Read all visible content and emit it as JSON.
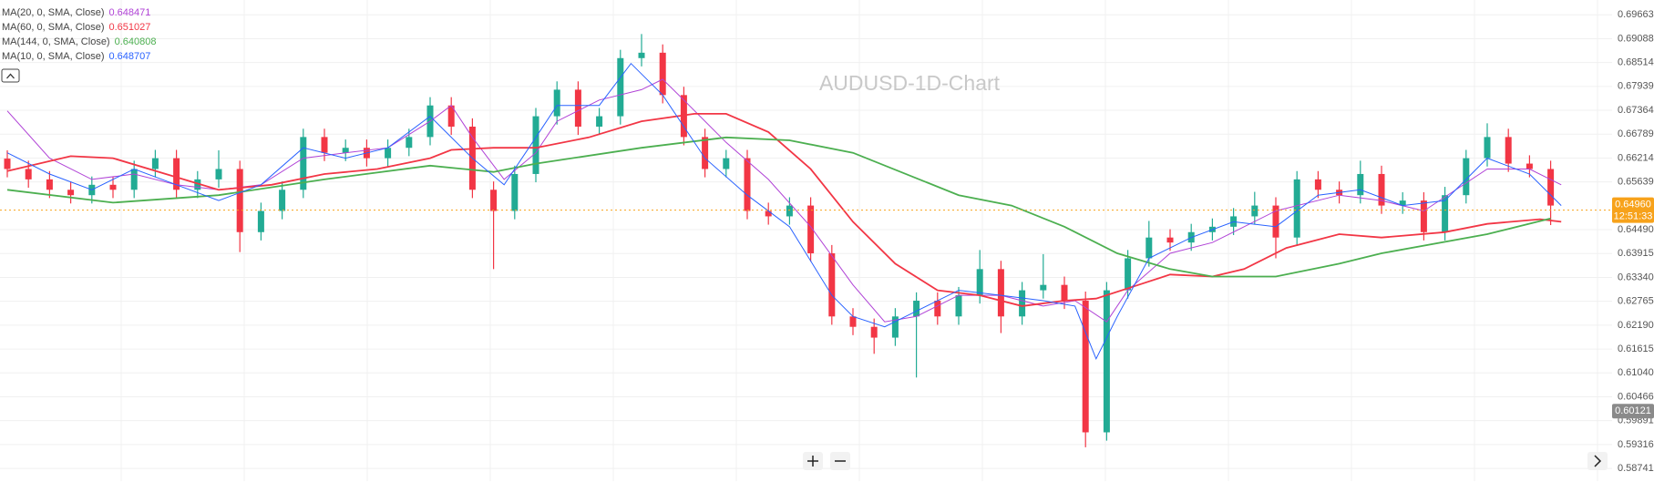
{
  "chart_data": {
    "type": "candlestick",
    "title": "AUDUSD-1D-Chart",
    "ylim": [
      0.58436,
      0.70019
    ],
    "yticks": [
      0.58741,
      0.59316,
      0.59891,
      0.60466,
      {
        "value": 0.6104,
        "label": "0.61040"
      },
      0.61615,
      {
        "value": 0.6219,
        "label": "0.62190"
      },
      0.62765,
      {
        "value": 0.6334,
        "label": "0.63340"
      },
      0.63915,
      {
        "value": 0.6449,
        "label": "0.64490"
      },
      0.65639,
      0.66214,
      0.66789,
      0.67364,
      0.67939,
      0.68514,
      0.69088,
      0.69663
    ],
    "grid": true,
    "up_color": "#22ab94",
    "down_color": "#f23645",
    "open": [
      0.662,
      0.6595,
      0.657,
      0.6545,
      0.6532,
      0.6557,
      0.6545,
      0.6595,
      0.6621,
      0.6545,
      0.657,
      0.6595,
      0.6443,
      0.6494,
      0.6545,
      0.6672,
      0.6634,
      0.6646,
      0.6621,
      0.6646,
      0.6672,
      0.6748,
      0.6697,
      0.6545,
      0.6494,
      0.6583,
      0.6722,
      0.6786,
      0.6697,
      0.6722,
      0.6862,
      0.6875,
      0.6773,
      0.6672,
      0.6595,
      0.6621,
      0.6494,
      0.6481,
      0.6507,
      0.6392,
      0.624,
      0.6215,
      0.6189,
      0.624,
      0.6278,
      0.624,
      0.6291,
      0.6354,
      0.624,
      0.6303,
      0.6316,
      0.6278,
      0.5961,
      0.6303,
      0.638,
      0.643,
      0.6418,
      0.6443,
      0.6456,
      0.6481,
      0.6507,
      0.643,
      0.657,
      0.6545,
      0.6532,
      0.6583,
      0.6507,
      0.6519,
      0.6443,
      0.6532,
      0.6621,
      0.6672,
      0.6608,
      0.6595
    ],
    "high": [
      0.664,
      0.6615,
      0.659,
      0.6565,
      0.6577,
      0.6577,
      0.6615,
      0.6641,
      0.6641,
      0.659,
      0.664,
      0.6615,
      0.6514,
      0.6565,
      0.6692,
      0.6692,
      0.6666,
      0.6666,
      0.6666,
      0.6692,
      0.6768,
      0.6768,
      0.6717,
      0.6565,
      0.6603,
      0.6742,
      0.6806,
      0.6806,
      0.6742,
      0.6882,
      0.692,
      0.6895,
      0.6793,
      0.6692,
      0.6641,
      0.6641,
      0.6514,
      0.6527,
      0.6527,
      0.6412,
      0.626,
      0.6235,
      0.626,
      0.6298,
      0.6298,
      0.6311,
      0.64,
      0.6374,
      0.6323,
      0.639,
      0.6336,
      0.63,
      0.6323,
      0.64,
      0.647,
      0.645,
      0.6463,
      0.6476,
      0.6501,
      0.654,
      0.6527,
      0.659,
      0.659,
      0.6565,
      0.6615,
      0.6603,
      0.6539,
      0.6539,
      0.6552,
      0.6641,
      0.6705,
      0.6692,
      0.6628,
      0.6615
    ],
    "low": [
      0.6575,
      0.655,
      0.6525,
      0.6512,
      0.6512,
      0.6525,
      0.6525,
      0.6575,
      0.6525,
      0.6525,
      0.655,
      0.6395,
      0.6423,
      0.6474,
      0.6525,
      0.6614,
      0.6614,
      0.6601,
      0.6601,
      0.6626,
      0.6652,
      0.6677,
      0.6525,
      0.6354,
      0.6474,
      0.6563,
      0.6702,
      0.6677,
      0.6677,
      0.6702,
      0.6842,
      0.6753,
      0.6652,
      0.6575,
      0.6575,
      0.6474,
      0.6461,
      0.6461,
      0.6372,
      0.622,
      0.6195,
      0.615,
      0.6169,
      0.6093,
      0.622,
      0.622,
      0.6271,
      0.62,
      0.622,
      0.6283,
      0.6258,
      0.5925,
      0.5941,
      0.6283,
      0.636,
      0.6398,
      0.6398,
      0.6423,
      0.6436,
      0.6461,
      0.638,
      0.641,
      0.6525,
      0.6512,
      0.6512,
      0.6487,
      0.6487,
      0.6423,
      0.6423,
      0.6512,
      0.6601,
      0.6588,
      0.6575,
      0.646
    ],
    "close": [
      0.6595,
      0.657,
      0.6545,
      0.6532,
      0.6557,
      0.6545,
      0.6595,
      0.6621,
      0.6545,
      0.657,
      0.6595,
      0.6443,
      0.6494,
      0.6545,
      0.6672,
      0.6634,
      0.6646,
      0.6621,
      0.6646,
      0.6672,
      0.6748,
      0.6697,
      0.6545,
      0.6494,
      0.6583,
      0.6722,
      0.6786,
      0.6697,
      0.6722,
      0.6862,
      0.6875,
      0.6773,
      0.6672,
      0.6595,
      0.6621,
      0.6494,
      0.6481,
      0.6507,
      0.6392,
      0.624,
      0.6215,
      0.6189,
      0.624,
      0.6278,
      0.624,
      0.6291,
      0.6354,
      0.624,
      0.6303,
      0.6316,
      0.6278,
      0.5961,
      0.6303,
      0.638,
      0.643,
      0.6418,
      0.6443,
      0.6456,
      0.6481,
      0.6507,
      0.643,
      0.657,
      0.6545,
      0.6532,
      0.6583,
      0.6507,
      0.6519,
      0.6443,
      0.6532,
      0.6621,
      0.6672,
      0.6608,
      0.6595,
      0.6507
    ],
    "series": [
      {
        "name": "MA(20, 0, SMA, Close)",
        "color": "#b042d6",
        "last": 0.648471,
        "x": [
          0,
          2,
          4,
          6,
          8,
          10,
          12,
          14,
          16,
          18,
          20,
          21,
          22,
          23.5,
          25,
          26,
          28,
          30,
          31,
          32,
          34,
          36,
          38,
          40,
          41.5,
          43,
          45,
          47,
          49,
          50.5,
          52,
          53,
          55,
          57,
          60,
          63,
          65,
          67,
          70,
          72,
          73.5
        ],
        "values": [
          0.6735,
          0.6621,
          0.657,
          0.6583,
          0.6557,
          0.6545,
          0.6557,
          0.6621,
          0.6634,
          0.6646,
          0.671,
          0.6748,
          0.6671,
          0.657,
          0.6634,
          0.671,
          0.6761,
          0.6786,
          0.6811,
          0.6761,
          0.6659,
          0.657,
          0.6456,
          0.6316,
          0.6227,
          0.624,
          0.6291,
          0.6291,
          0.6265,
          0.6278,
          0.6227,
          0.6303,
          0.6392,
          0.6418,
          0.6494,
          0.6532,
          0.6519,
          0.6494,
          0.6595,
          0.6595,
          0.6557
        ]
      },
      {
        "name": "MA(60, 0, SMA, Close)",
        "color": "#f23645",
        "last": 0.651027,
        "x": [
          0,
          3,
          5,
          7.5,
          10,
          12.5,
          15,
          17.5,
          20,
          21,
          23,
          25,
          27.5,
          30,
          32.5,
          34,
          36,
          38,
          40,
          42,
          44,
          46,
          48,
          50,
          51.5,
          53.5,
          55,
          57,
          58.5,
          60.5,
          63,
          65,
          68,
          70,
          72.5,
          73.5
        ],
        "values": [
          0.659,
          0.6626,
          0.6621,
          0.6583,
          0.6545,
          0.6557,
          0.6583,
          0.6595,
          0.6621,
          0.6641,
          0.6646,
          0.6646,
          0.6671,
          0.671,
          0.6728,
          0.6728,
          0.6684,
          0.6595,
          0.6468,
          0.6367,
          0.6303,
          0.6291,
          0.6265,
          0.6278,
          0.6283,
          0.6316,
          0.6341,
          0.6336,
          0.6354,
          0.6405,
          0.6438,
          0.643,
          0.6443,
          0.6463,
          0.6474,
          0.6468
        ]
      },
      {
        "name": "MA(144, 0, SMA, Close)",
        "color": "#4caf50",
        "last": 0.640808,
        "x": [
          0,
          5,
          10,
          15,
          20,
          23,
          25,
          30,
          34,
          37,
          40,
          45,
          47.5,
          50,
          52.5,
          55,
          57,
          60,
          63,
          65,
          70,
          73
        ],
        "values": [
          0.6545,
          0.6514,
          0.6532,
          0.657,
          0.6603,
          0.6588,
          0.6608,
          0.6646,
          0.6671,
          0.6664,
          0.6634,
          0.6532,
          0.6507,
          0.6456,
          0.6392,
          0.6354,
          0.6336,
          0.6336,
          0.6367,
          0.6392,
          0.6438,
          0.6476
        ]
      },
      {
        "name": "MA(10, 0, SMA, Close)",
        "color": "#2962ff",
        "last": 0.648707,
        "x": [
          0,
          2,
          4,
          6,
          8,
          10,
          12,
          14,
          16,
          18,
          20,
          22,
          23.5,
          25,
          26,
          28,
          29.5,
          31,
          33,
          35,
          37,
          39,
          40,
          41.5,
          43,
          45,
          47,
          49,
          50.5,
          51.5,
          52.5,
          54,
          56,
          58,
          60,
          62,
          64,
          66,
          68,
          70,
          72,
          73.5
        ],
        "values": [
          0.6634,
          0.6583,
          0.6545,
          0.6595,
          0.6557,
          0.6519,
          0.6557,
          0.6646,
          0.6621,
          0.6646,
          0.6722,
          0.6621,
          0.6557,
          0.6671,
          0.6748,
          0.6748,
          0.6849,
          0.6773,
          0.6621,
          0.6532,
          0.6456,
          0.6291,
          0.624,
          0.6215,
          0.6253,
          0.6303,
          0.6291,
          0.6278,
          0.6265,
          0.6138,
          0.624,
          0.638,
          0.643,
          0.6468,
          0.6456,
          0.6532,
          0.6545,
          0.6507,
          0.6519,
          0.6621,
          0.6583,
          0.6507
        ]
      }
    ],
    "current_price": {
      "value": 0.6496,
      "label": "0.64960"
    },
    "countdown": "12:51:33",
    "marker_price": 0.60121
  }
}
